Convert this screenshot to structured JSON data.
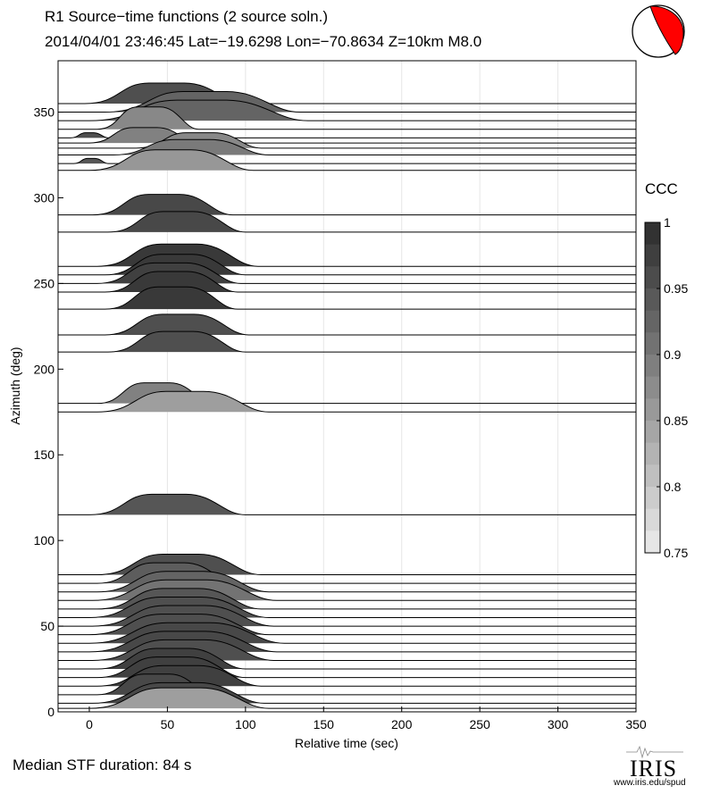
{
  "header": {
    "title": "R1 Source−time functions (2 source soln.)",
    "subtitle": "2014/04/01 23:46:45  Lat=−19.6298 Lon=−70.8634  Z=10km  M8.0"
  },
  "footer": {
    "median": "Median STF duration: 84 s",
    "logo_text": "IRIS",
    "logo_url": "www.iris.edu/spud"
  },
  "colors": {
    "beachball_red": "#ff0000",
    "ccc_min": "#e6e6e6",
    "ccc_max": "#323232"
  },
  "chart_data": {
    "type": "area",
    "title": "R1 Source−time functions (2 source soln.)",
    "xlabel": "Relative time (sec)",
    "ylabel": "Azimuth (deg)",
    "xlim": [
      -20,
      350
    ],
    "ylim": [
      0,
      380
    ],
    "xticks": [
      0,
      50,
      100,
      150,
      200,
      250,
      300,
      350
    ],
    "yticks": [
      0,
      50,
      100,
      150,
      200,
      250,
      300,
      350
    ],
    "grid": "vertical",
    "colorbar": {
      "label": "CCC",
      "min": 0.75,
      "max": 1,
      "ticks": [
        0.75,
        0.8,
        0.85,
        0.9,
        0.95,
        1
      ],
      "tick_labels": [
        "0.75",
        "0.8",
        "0.85",
        "0.9",
        "0.95",
        "1"
      ],
      "levels": 15
    },
    "traces": [
      {
        "az": 355,
        "start": -3,
        "end": 100,
        "peak": 12,
        "ccc": 0.96
      },
      {
        "az": 350,
        "start": 10,
        "end": 135,
        "peak": 12,
        "ccc": 0.93
      },
      {
        "az": 345,
        "start": 0,
        "end": 140,
        "peak": 12,
        "ccc": 0.93
      },
      {
        "az": 340,
        "start": 5,
        "end": 70,
        "peak": 13,
        "ccc": 0.88
      },
      {
        "az": 335,
        "start": -12,
        "end": 12,
        "peak": 3,
        "ccc": 0.96
      },
      {
        "az": 332,
        "start": 0,
        "end": 70,
        "peak": 9,
        "ccc": 0.89
      },
      {
        "az": 329,
        "start": 30,
        "end": 110,
        "peak": 9,
        "ccc": 0.88
      },
      {
        "az": 325,
        "start": 15,
        "end": 115,
        "peak": 9,
        "ccc": 0.9
      },
      {
        "az": 320,
        "start": -10,
        "end": 12,
        "peak": 3,
        "ccc": 0.95
      },
      {
        "az": 316,
        "start": 0,
        "end": 105,
        "peak": 12,
        "ccc": 0.86
      },
      {
        "az": 290,
        "start": 2,
        "end": 92,
        "peak": 12,
        "ccc": 0.97
      },
      {
        "az": 280,
        "start": 12,
        "end": 100,
        "peak": 12,
        "ccc": 0.97
      },
      {
        "az": 260,
        "start": 5,
        "end": 108,
        "peak": 13,
        "ccc": 0.99
      },
      {
        "az": 255,
        "start": 10,
        "end": 100,
        "peak": 12,
        "ccc": 0.99
      },
      {
        "az": 250,
        "start": 5,
        "end": 97,
        "peak": 12,
        "ccc": 0.98
      },
      {
        "az": 245,
        "start": 10,
        "end": 95,
        "peak": 12,
        "ccc": 0.99
      },
      {
        "az": 235,
        "start": 10,
        "end": 95,
        "peak": 13,
        "ccc": 0.99
      },
      {
        "az": 220,
        "start": 10,
        "end": 102,
        "peak": 12,
        "ccc": 0.96
      },
      {
        "az": 210,
        "start": 12,
        "end": 100,
        "peak": 12,
        "ccc": 0.96
      },
      {
        "az": 180,
        "start": 5,
        "end": 80,
        "peak": 12,
        "ccc": 0.89
      },
      {
        "az": 175,
        "start": 5,
        "end": 115,
        "peak": 12,
        "ccc": 0.85
      },
      {
        "az": 115,
        "start": 0,
        "end": 100,
        "peak": 12,
        "ccc": 0.95
      },
      {
        "az": 80,
        "start": 5,
        "end": 110,
        "peak": 12,
        "ccc": 0.96
      },
      {
        "az": 75,
        "start": 5,
        "end": 95,
        "peak": 12,
        "ccc": 0.94
      },
      {
        "az": 70,
        "start": 5,
        "end": 115,
        "peak": 12,
        "ccc": 0.93
      },
      {
        "az": 65,
        "start": 2,
        "end": 120,
        "peak": 12,
        "ccc": 0.91
      },
      {
        "az": 60,
        "start": 5,
        "end": 110,
        "peak": 12,
        "ccc": 0.95
      },
      {
        "az": 55,
        "start": 0,
        "end": 115,
        "peak": 12,
        "ccc": 0.96
      },
      {
        "az": 50,
        "start": 2,
        "end": 118,
        "peak": 12,
        "ccc": 0.96
      },
      {
        "az": 45,
        "start": 0,
        "end": 115,
        "peak": 12,
        "ccc": 0.96
      },
      {
        "az": 40,
        "start": 0,
        "end": 125,
        "peak": 12,
        "ccc": 0.97
      },
      {
        "az": 35,
        "start": 0,
        "end": 120,
        "peak": 12,
        "ccc": 0.97
      },
      {
        "az": 30,
        "start": 2,
        "end": 118,
        "peak": 12,
        "ccc": 0.96
      },
      {
        "az": 25,
        "start": 5,
        "end": 100,
        "peak": 12,
        "ccc": 0.98
      },
      {
        "az": 20,
        "start": 5,
        "end": 100,
        "peak": 12,
        "ccc": 0.98
      },
      {
        "az": 15,
        "start": 5,
        "end": 110,
        "peak": 12,
        "ccc": 0.98
      },
      {
        "az": 10,
        "start": 5,
        "end": 80,
        "peak": 12,
        "ccc": 0.97
      },
      {
        "az": 5,
        "start": 2,
        "end": 112,
        "peak": 12,
        "ccc": 0.97
      },
      {
        "az": 2,
        "start": 0,
        "end": 115,
        "peak": 12,
        "ccc": 0.85
      }
    ]
  }
}
